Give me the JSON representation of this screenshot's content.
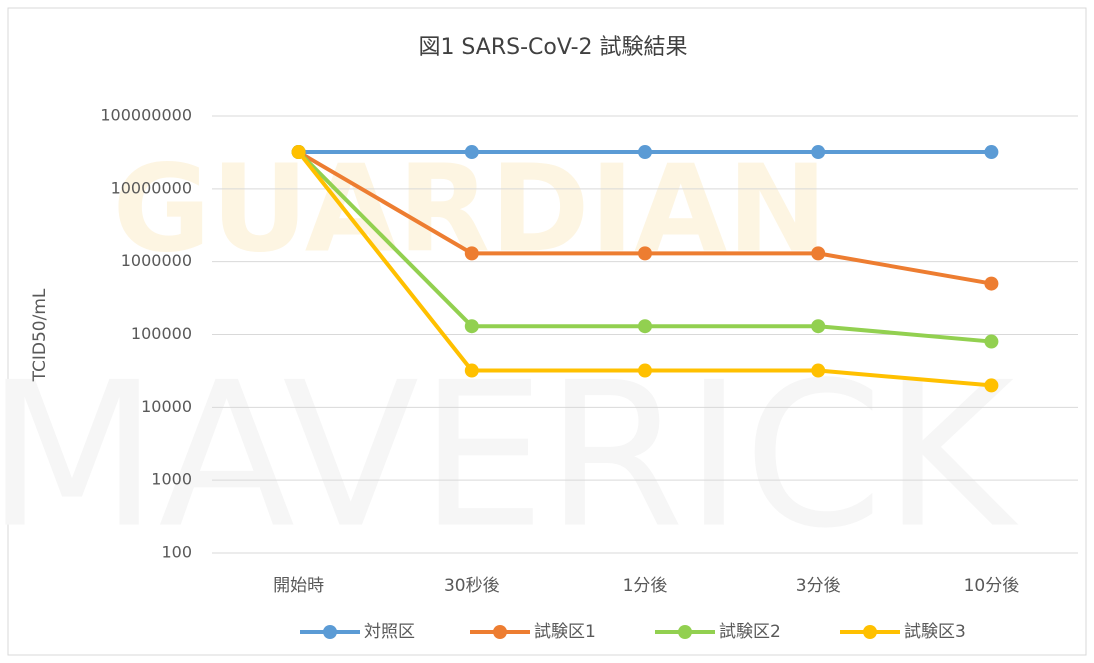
{
  "chart_data": {
    "type": "line",
    "title": "図1 SARS-CoV-2 試験結果",
    "ylabel": "TCID50/mL",
    "watermarks": [
      "GUARDIAN",
      "MAVERICK"
    ],
    "categories": [
      "開始時",
      "30秒後",
      "1分後",
      "3分後",
      "10分後"
    ],
    "series": [
      {
        "name": "対照区",
        "color": "#5b9bd5",
        "values": [
          32000000,
          32000000,
          32000000,
          32000000,
          32000000
        ]
      },
      {
        "name": "試験区1",
        "color": "#ed7d31",
        "values": [
          32000000,
          1300000,
          1300000,
          1300000,
          500000
        ]
      },
      {
        "name": "試験区2",
        "color": "#92d050",
        "values": [
          32000000,
          130000,
          130000,
          130000,
          80000
        ]
      },
      {
        "name": "試験区3",
        "color": "#ffc000",
        "values": [
          32000000,
          32000,
          32000,
          32000,
          20000
        ]
      }
    ],
    "log_y": true,
    "ylim": [
      100,
      100000000
    ],
    "yticks": [
      100,
      1000,
      10000,
      100000,
      1000000,
      10000000,
      100000000
    ],
    "grid": true,
    "legend": "bottom"
  }
}
